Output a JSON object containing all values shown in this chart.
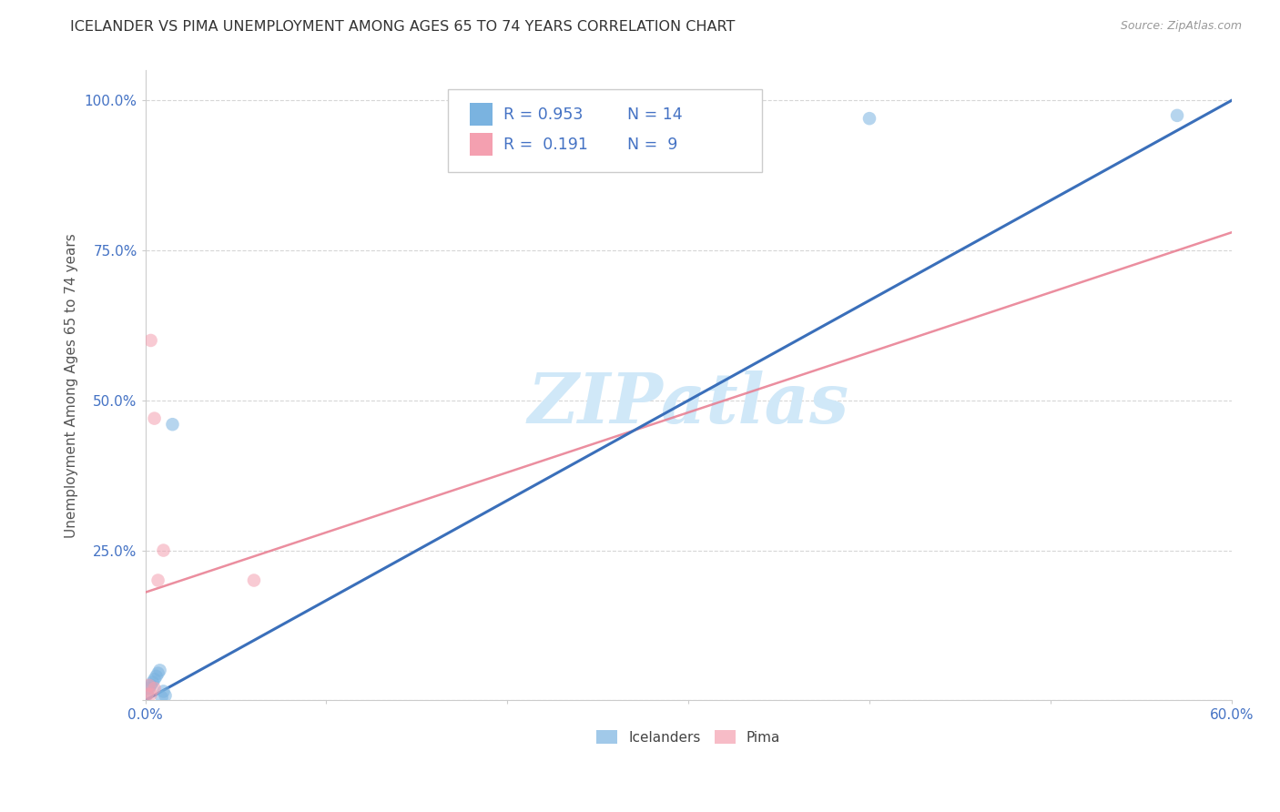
{
  "title": "ICELANDER VS PIMA UNEMPLOYMENT AMONG AGES 65 TO 74 YEARS CORRELATION CHART",
  "source": "Source: ZipAtlas.com",
  "xlabel": "",
  "ylabel": "Unemployment Among Ages 65 to 74 years",
  "xlim": [
    0.0,
    0.6
  ],
  "ylim": [
    0.0,
    1.05
  ],
  "xticks": [
    0.0,
    0.1,
    0.2,
    0.3,
    0.4,
    0.5,
    0.6
  ],
  "yticks": [
    0.0,
    0.25,
    0.5,
    0.75,
    1.0
  ],
  "ytick_labels": [
    "",
    "25.0%",
    "50.0%",
    "75.0%",
    "100.0%"
  ],
  "xtick_labels": [
    "0.0%",
    "",
    "",
    "",
    "",
    "",
    "60.0%"
  ],
  "background_color": "#ffffff",
  "icelanders_color": "#7ab3e0",
  "pima_color": "#f4a0b0",
  "blue_line_color": "#3a6fba",
  "pink_line_color": "#e87a8e",
  "grid_color": "#cccccc",
  "axis_color": "#cccccc",
  "tick_label_color": "#4472c4",
  "title_color": "#333333",
  "watermark_color": "#d0e8f8",
  "legend_r_icelanders": "R = 0.953",
  "legend_n_icelanders": "N = 14",
  "legend_r_pima": "R =  0.191",
  "legend_n_pima": "N =  9",
  "icelanders_x": [
    0.001,
    0.002,
    0.003,
    0.004,
    0.005,
    0.006,
    0.007,
    0.008,
    0.009,
    0.01,
    0.011,
    0.015,
    0.4,
    0.57
  ],
  "icelanders_y": [
    0.01,
    0.02,
    0.025,
    0.03,
    0.035,
    0.04,
    0.045,
    0.05,
    0.005,
    0.015,
    0.008,
    0.46,
    0.97,
    0.975
  ],
  "pima_x": [
    0.001,
    0.002,
    0.003,
    0.005,
    0.007,
    0.01,
    0.06,
    0.005,
    0.003
  ],
  "pima_y": [
    0.01,
    0.025,
    0.6,
    0.47,
    0.2,
    0.25,
    0.2,
    0.02,
    0.01
  ],
  "blue_line_x": [
    0.0,
    0.6
  ],
  "blue_line_y": [
    0.0,
    1.0
  ],
  "pink_line_x": [
    0.0,
    0.6
  ],
  "pink_line_y": [
    0.18,
    0.78
  ],
  "marker_size": 110,
  "marker_alpha": 0.55
}
